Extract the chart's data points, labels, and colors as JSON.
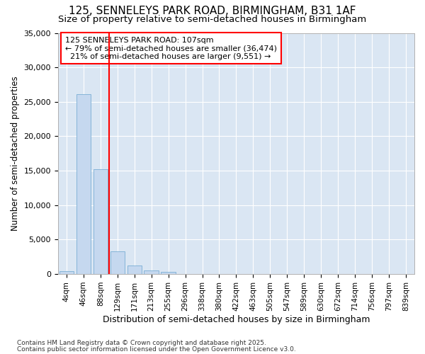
{
  "title_line1": "125, SENNELEYS PARK ROAD, BIRMINGHAM, B31 1AF",
  "title_line2": "Size of property relative to semi-detached houses in Birmingham",
  "xlabel": "Distribution of semi-detached houses by size in Birmingham",
  "ylabel": "Number of semi-detached properties",
  "categories": [
    "4sqm",
    "46sqm",
    "88sqm",
    "129sqm",
    "171sqm",
    "213sqm",
    "255sqm",
    "296sqm",
    "338sqm",
    "380sqm",
    "422sqm",
    "463sqm",
    "505sqm",
    "547sqm",
    "589sqm",
    "630sqm",
    "672sqm",
    "714sqm",
    "756sqm",
    "797sqm",
    "839sqm"
  ],
  "bar_heights": [
    400,
    26100,
    15200,
    3300,
    1200,
    500,
    300,
    0,
    0,
    0,
    0,
    0,
    0,
    0,
    0,
    0,
    0,
    0,
    0,
    0,
    0
  ],
  "bar_color": "#c5d8ef",
  "bar_edge_color": "#7aadd4",
  "vline_color": "red",
  "vline_position": 2.5,
  "property_size": "107sqm",
  "pct_smaller": 79,
  "count_smaller": "36,474",
  "pct_larger": 21,
  "count_larger": "9,551",
  "ylim": [
    0,
    35000
  ],
  "yticks": [
    0,
    5000,
    10000,
    15000,
    20000,
    25000,
    30000,
    35000
  ],
  "fig_bg_color": "#ffffff",
  "plot_bg_color": "#dae6f3",
  "grid_color": "#ffffff",
  "footer_line1": "Contains HM Land Registry data © Crown copyright and database right 2025.",
  "footer_line2": "Contains public sector information licensed under the Open Government Licence v3.0."
}
